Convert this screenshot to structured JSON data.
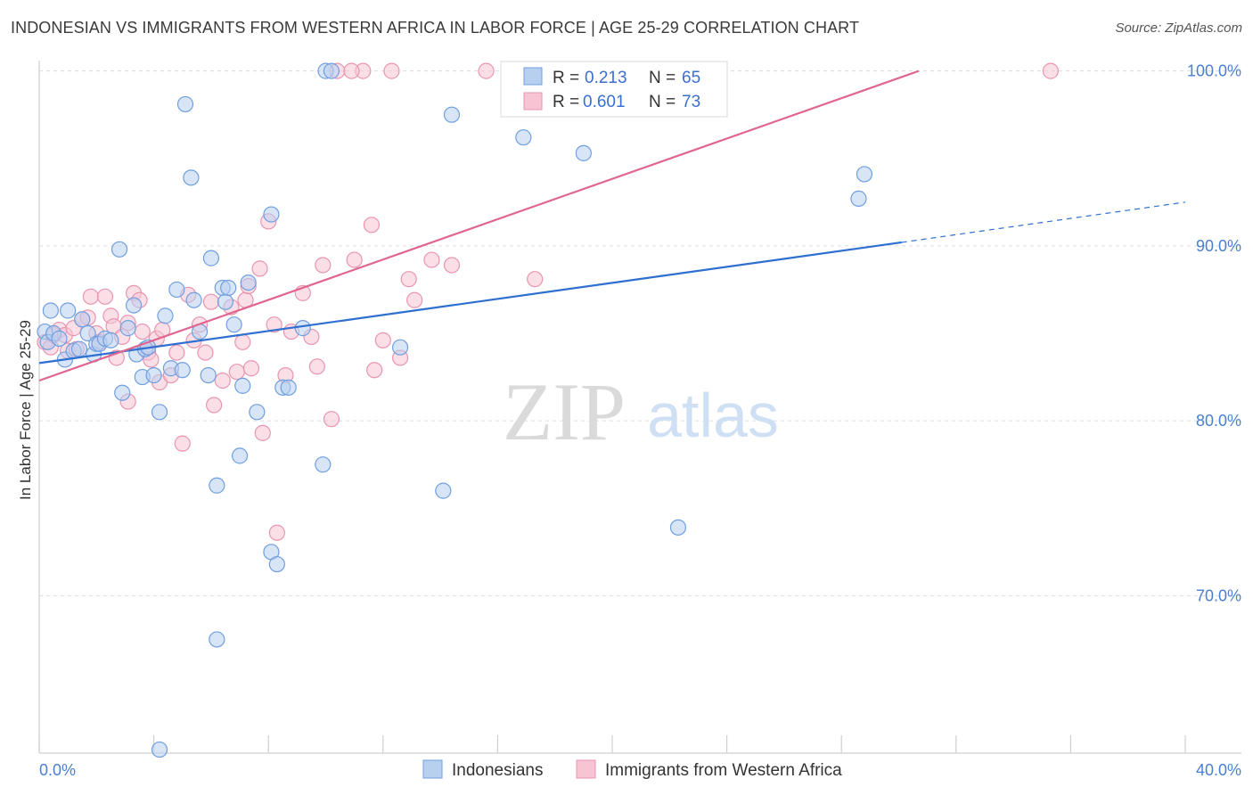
{
  "title": "INDONESIAN VS IMMIGRANTS FROM WESTERN AFRICA IN LABOR FORCE | AGE 25-29 CORRELATION CHART",
  "source": "Source: ZipAtlas.com",
  "watermark": {
    "zip": "ZIP",
    "atlas": "atlas"
  },
  "colors": {
    "blue_fill": "#b8d0f0",
    "blue_stroke": "#6f9fdf",
    "blue_line": "#2e6fd0",
    "pink_fill": "#f7c4d4",
    "pink_stroke": "#e995b0",
    "pink_line": "#e0668f",
    "grid": "#dcdcdc",
    "tick_text": "#4a7fd0"
  },
  "legend": {
    "rows": [
      {
        "r_label": "R =",
        "r_value": "0.213",
        "n_label": "N =",
        "n_value": "65"
      },
      {
        "r_label": "R =",
        "r_value": "0.601",
        "n_label": "N =",
        "n_value": "73"
      }
    ]
  },
  "chart_data": {
    "type": "scatter",
    "xlabel": "",
    "ylabel": "In Labor Force | Age 25-29",
    "xlim": [
      0,
      40
    ],
    "ylim": [
      61,
      101
    ],
    "x_tick_labels": [
      {
        "value": 0,
        "label": "0.0%"
      },
      {
        "value": 40,
        "label": "40.0%"
      }
    ],
    "y_tick_labels": [
      {
        "value": 100,
        "label": "100.0%"
      },
      {
        "value": 90,
        "label": "90.0%"
      },
      {
        "value": 80,
        "label": "80.0%"
      },
      {
        "value": 70,
        "label": "70.0%"
      }
    ],
    "grid": true,
    "legend_position": "top-center",
    "series": [
      {
        "name": "Indonesians",
        "color": "#6f9fdf",
        "trend": {
          "x0": 0,
          "y0": 83.3,
          "x1": 30.1,
          "y1": 90.2,
          "dashed_to_x": 40,
          "dashed_to_y": 92.5
        },
        "points": [
          [
            0.2,
            85.1
          ],
          [
            0.3,
            84.5
          ],
          [
            0.4,
            86.3
          ],
          [
            0.5,
            85.0
          ],
          [
            0.7,
            84.7
          ],
          [
            0.9,
            83.5
          ],
          [
            1.0,
            86.3
          ],
          [
            1.2,
            84.0
          ],
          [
            1.4,
            84.1
          ],
          [
            1.5,
            85.8
          ],
          [
            1.7,
            85.0
          ],
          [
            1.9,
            83.8
          ],
          [
            2.0,
            84.4
          ],
          [
            2.1,
            84.4
          ],
          [
            2.3,
            84.7
          ],
          [
            2.5,
            84.6
          ],
          [
            2.8,
            89.8
          ],
          [
            2.9,
            81.6
          ],
          [
            3.1,
            85.3
          ],
          [
            3.3,
            86.6
          ],
          [
            3.4,
            83.8
          ],
          [
            3.6,
            82.5
          ],
          [
            3.7,
            84.1
          ],
          [
            3.8,
            84.2
          ],
          [
            4.0,
            82.6
          ],
          [
            4.2,
            80.5
          ],
          [
            4.4,
            86.0
          ],
          [
            4.6,
            83.0
          ],
          [
            4.8,
            87.5
          ],
          [
            5.0,
            82.9
          ],
          [
            5.1,
            98.1
          ],
          [
            5.3,
            93.9
          ],
          [
            5.4,
            86.9
          ],
          [
            5.6,
            85.1
          ],
          [
            5.9,
            82.6
          ],
          [
            6.0,
            89.3
          ],
          [
            6.2,
            76.3
          ],
          [
            6.4,
            87.6
          ],
          [
            6.5,
            86.8
          ],
          [
            6.6,
            87.6
          ],
          [
            6.8,
            85.5
          ],
          [
            7.0,
            78.0
          ],
          [
            7.1,
            82.0
          ],
          [
            7.3,
            87.9
          ],
          [
            7.6,
            80.5
          ],
          [
            8.1,
            91.8
          ],
          [
            8.1,
            72.5
          ],
          [
            8.3,
            71.8
          ],
          [
            8.5,
            81.9
          ],
          [
            8.7,
            81.9
          ],
          [
            9.2,
            85.3
          ],
          [
            9.9,
            77.5
          ],
          [
            10.0,
            100.0
          ],
          [
            10.2,
            100.0
          ],
          [
            12.6,
            84.2
          ],
          [
            14.1,
            76.0
          ],
          [
            14.4,
            97.5
          ],
          [
            16.9,
            96.2
          ],
          [
            18.8,
            100.0
          ],
          [
            19.0,
            95.3
          ],
          [
            22.3,
            73.9
          ],
          [
            28.6,
            92.7
          ],
          [
            28.8,
            94.1
          ],
          [
            4.2,
            61.2
          ],
          [
            6.2,
            67.5
          ]
        ]
      },
      {
        "name": "Immigrants from Western Africa",
        "color": "#e995b0",
        "trend": {
          "x0": 0,
          "y0": 82.3,
          "x1": 30.7,
          "y1": 100.0
        },
        "points": [
          [
            0.2,
            84.5
          ],
          [
            0.4,
            84.2
          ],
          [
            0.5,
            84.9
          ],
          [
            0.7,
            85.2
          ],
          [
            0.9,
            84.9
          ],
          [
            1.0,
            84.0
          ],
          [
            1.2,
            85.3
          ],
          [
            1.3,
            84.1
          ],
          [
            1.5,
            85.8
          ],
          [
            1.7,
            85.9
          ],
          [
            1.8,
            87.1
          ],
          [
            2.0,
            85.0
          ],
          [
            2.1,
            84.5
          ],
          [
            2.3,
            87.1
          ],
          [
            2.5,
            86.0
          ],
          [
            2.6,
            85.4
          ],
          [
            2.7,
            83.6
          ],
          [
            2.9,
            84.8
          ],
          [
            3.1,
            85.6
          ],
          [
            3.3,
            87.3
          ],
          [
            3.5,
            86.9
          ],
          [
            3.6,
            85.1
          ],
          [
            3.8,
            83.9
          ],
          [
            3.9,
            83.5
          ],
          [
            4.1,
            84.7
          ],
          [
            4.2,
            82.2
          ],
          [
            4.3,
            85.2
          ],
          [
            4.6,
            82.6
          ],
          [
            4.8,
            83.9
          ],
          [
            5.0,
            78.7
          ],
          [
            5.2,
            87.2
          ],
          [
            5.4,
            84.6
          ],
          [
            5.6,
            85.5
          ],
          [
            5.8,
            83.9
          ],
          [
            6.0,
            86.8
          ],
          [
            6.1,
            80.9
          ],
          [
            6.4,
            82.3
          ],
          [
            6.7,
            86.5
          ],
          [
            6.9,
            82.8
          ],
          [
            7.1,
            84.5
          ],
          [
            7.2,
            86.9
          ],
          [
            7.4,
            83.0
          ],
          [
            7.7,
            88.7
          ],
          [
            7.8,
            79.3
          ],
          [
            8.0,
            91.4
          ],
          [
            8.2,
            85.5
          ],
          [
            8.3,
            73.6
          ],
          [
            8.6,
            82.6
          ],
          [
            8.8,
            85.1
          ],
          [
            9.2,
            87.3
          ],
          [
            9.5,
            84.8
          ],
          [
            9.7,
            83.1
          ],
          [
            9.9,
            88.9
          ],
          [
            10.2,
            80.1
          ],
          [
            10.4,
            100.0
          ],
          [
            11.0,
            89.2
          ],
          [
            11.3,
            100.0
          ],
          [
            11.6,
            91.2
          ],
          [
            11.7,
            82.9
          ],
          [
            12.0,
            84.6
          ],
          [
            12.3,
            100.0
          ],
          [
            12.6,
            83.6
          ],
          [
            12.9,
            88.1
          ],
          [
            13.1,
            86.9
          ],
          [
            13.7,
            89.2
          ],
          [
            14.4,
            88.9
          ],
          [
            15.6,
            100.0
          ],
          [
            17.3,
            88.1
          ],
          [
            19.8,
            100.0
          ],
          [
            35.3,
            100.0
          ],
          [
            3.1,
            81.1
          ],
          [
            7.3,
            87.7
          ],
          [
            10.9,
            100.0
          ]
        ]
      }
    ]
  }
}
